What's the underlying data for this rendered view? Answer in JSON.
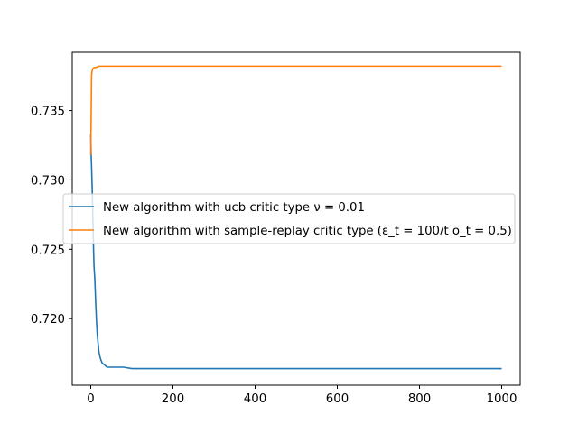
{
  "chart_data": {
    "type": "line",
    "title": "",
    "xlabel": "",
    "ylabel": "",
    "xlim": [
      -45,
      1045
    ],
    "ylim": [
      0.7152,
      0.7392
    ],
    "x_ticks": [
      0,
      200,
      400,
      600,
      800,
      1000
    ],
    "x_tick_labels": [
      "0",
      "200",
      "400",
      "600",
      "800",
      "1000"
    ],
    "y_ticks": [
      0.72,
      0.725,
      0.73,
      0.735
    ],
    "y_tick_labels": [
      "0.720",
      "0.725",
      "0.730",
      "0.735"
    ],
    "grid": false,
    "legend_position": "center-left",
    "series": [
      {
        "name": "New algorithm with ucb critic type ν = 0.01",
        "color": "#1f77b4",
        "x": [
          0,
          1,
          2,
          3,
          4,
          5,
          6,
          7,
          8,
          10,
          12,
          14,
          16,
          18,
          20,
          22,
          25,
          28,
          32,
          36,
          40,
          45,
          50,
          60,
          70,
          80,
          100,
          150,
          200,
          300,
          400,
          500,
          600,
          700,
          800,
          900,
          1000
        ],
        "values": [
          0.7333,
          0.7318,
          0.731,
          0.73,
          0.7288,
          0.7275,
          0.7262,
          0.7248,
          0.7238,
          0.7228,
          0.7212,
          0.7198,
          0.7188,
          0.7182,
          0.7176,
          0.7173,
          0.717,
          0.7168,
          0.7167,
          0.7166,
          0.7165,
          0.7165,
          0.7165,
          0.7165,
          0.7165,
          0.7165,
          0.7164,
          0.7164,
          0.7164,
          0.7164,
          0.7164,
          0.7164,
          0.7164,
          0.7164,
          0.7164,
          0.7164,
          0.7164
        ]
      },
      {
        "name": "New algorithm with sample-replay critic type (ε_t = 100/t  o_t = 0.5)",
        "color": "#ff7f0e",
        "x": [
          0,
          1,
          2,
          3,
          5,
          8,
          12,
          20,
          40,
          100,
          200,
          400,
          600,
          800,
          1000
        ],
        "values": [
          0.7318,
          0.7345,
          0.7375,
          0.7378,
          0.738,
          0.7381,
          0.7381,
          0.7382,
          0.7382,
          0.7382,
          0.7382,
          0.7382,
          0.7382,
          0.7382,
          0.7382
        ]
      }
    ]
  }
}
